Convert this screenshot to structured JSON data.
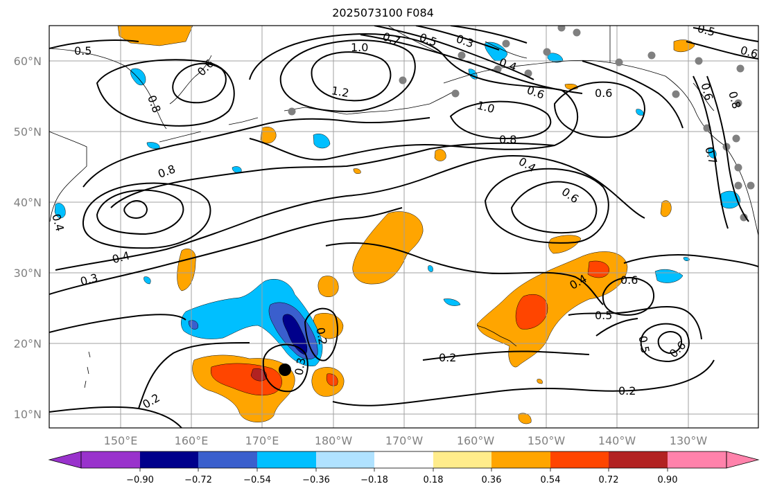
{
  "title": "2025073100 F084",
  "lat_labels": [
    "60°N",
    "50°N",
    "40°N",
    "30°N",
    "20°N",
    "10°N"
  ],
  "lon_labels": [
    "150°E",
    "160°E",
    "170°E",
    "180°W",
    "170°W",
    "160°W",
    "150°W",
    "140°W",
    "130°W"
  ],
  "contour_labels": [
    "0.5",
    "0.6",
    "0.8",
    "1.0",
    "0.7",
    "0.5",
    "0.3",
    "0.4",
    "1.2",
    "0.6",
    "0.6",
    "1.0",
    "0.8",
    "0.4",
    "0.6",
    "0.8",
    "0.4",
    "0.3",
    "0.4",
    "0.6",
    "0.5",
    "0.5",
    "0.6",
    "0.2",
    "0.2",
    "0.2",
    "0.3",
    "0.2",
    "0.6",
    "0.5",
    "0.6",
    "0.8",
    "0.7",
    "0.4"
  ],
  "colorbar": {
    "ticks": [
      "−0.90",
      "−0.72",
      "−0.54",
      "−0.36",
      "−0.18",
      "0.18",
      "0.36",
      "0.54",
      "0.72",
      "0.90"
    ],
    "colors": [
      "#9932CC",
      "#00008B",
      "#3A5FCD",
      "#00BFFF",
      "#B0E2FF",
      "#FFFFFF",
      "#FFEC8B",
      "#FFA500",
      "#FF4500",
      "#B22222",
      "#FF82AB"
    ]
  }
}
